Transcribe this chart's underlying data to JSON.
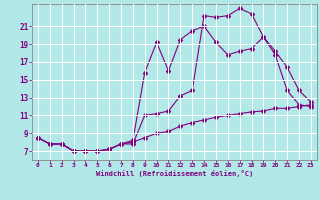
{
  "xlabel": "Windchill (Refroidissement éolien,°C)",
  "background_color": "#b3e8e8",
  "line_color": "#800080",
  "grid_color": "#ffffff",
  "x_ticks": [
    0,
    1,
    2,
    3,
    4,
    5,
    6,
    7,
    8,
    9,
    10,
    11,
    12,
    13,
    14,
    15,
    16,
    17,
    18,
    19,
    20,
    21,
    22,
    23
  ],
  "y_ticks": [
    7,
    9,
    11,
    13,
    15,
    17,
    19,
    21
  ],
  "ylim": [
    6.0,
    23.5
  ],
  "xlim": [
    -0.5,
    23.5
  ],
  "line1_x": [
    0,
    1,
    2,
    3,
    4,
    5,
    6,
    7,
    8,
    9,
    10,
    11,
    12,
    13,
    14,
    15,
    16,
    17,
    18,
    19,
    20,
    21,
    22,
    23
  ],
  "line1_y": [
    8.5,
    7.8,
    7.8,
    7.0,
    7.0,
    7.0,
    7.2,
    7.8,
    7.8,
    11.0,
    11.2,
    11.5,
    13.2,
    13.8,
    22.2,
    22.0,
    22.2,
    23.0,
    22.4,
    19.8,
    18.2,
    16.4,
    13.8,
    12.5
  ],
  "line2_x": [
    0,
    1,
    2,
    3,
    4,
    5,
    6,
    7,
    8,
    9,
    10,
    11,
    12,
    13,
    14,
    15,
    16,
    17,
    18,
    19,
    20,
    21,
    22,
    23
  ],
  "line2_y": [
    8.5,
    7.8,
    7.8,
    7.0,
    7.0,
    7.0,
    7.2,
    7.8,
    8.2,
    15.8,
    19.2,
    16.0,
    19.5,
    20.5,
    21.0,
    19.2,
    17.8,
    18.2,
    18.5,
    19.8,
    17.8,
    13.8,
    12.2,
    12.0
  ],
  "line3_x": [
    0,
    1,
    2,
    3,
    4,
    5,
    6,
    7,
    8,
    9,
    10,
    11,
    12,
    13,
    14,
    15,
    16,
    17,
    18,
    19,
    20,
    21,
    22,
    23
  ],
  "line3_y": [
    8.5,
    7.8,
    7.8,
    7.0,
    7.0,
    7.0,
    7.2,
    7.8,
    8.0,
    8.5,
    9.0,
    9.2,
    9.8,
    10.2,
    10.5,
    10.8,
    11.0,
    11.2,
    11.4,
    11.5,
    11.8,
    11.8,
    12.0,
    12.2
  ]
}
